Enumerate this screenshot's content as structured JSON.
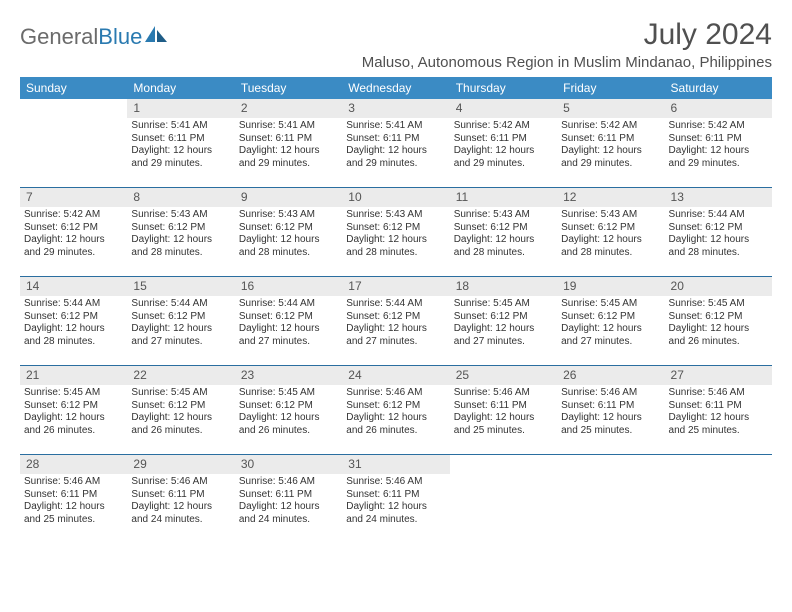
{
  "brand": {
    "part1": "General",
    "part2": "Blue"
  },
  "title": "July 2024",
  "location": "Maluso, Autonomous Region in Muslim Mindanao, Philippines",
  "colors": {
    "header_bg": "#3b8bc4",
    "header_text": "#ffffff",
    "row_divider": "#2a6ea0",
    "daynum_bg": "#ebebeb",
    "text": "#333333",
    "title_text": "#505050",
    "logo_gray": "#6b6b6b",
    "logo_blue": "#2a7ab0",
    "page_bg": "#ffffff"
  },
  "typography": {
    "title_fontsize": 30,
    "location_fontsize": 15,
    "dow_fontsize": 12,
    "daynum_fontsize": 12,
    "body_fontsize": 10
  },
  "days_of_week": [
    "Sunday",
    "Monday",
    "Tuesday",
    "Wednesday",
    "Thursday",
    "Friday",
    "Saturday"
  ],
  "weeks": [
    [
      {
        "n": "",
        "sunrise": "",
        "sunset": "",
        "daylight": ""
      },
      {
        "n": "1",
        "sunrise": "Sunrise: 5:41 AM",
        "sunset": "Sunset: 6:11 PM",
        "daylight": "Daylight: 12 hours and 29 minutes."
      },
      {
        "n": "2",
        "sunrise": "Sunrise: 5:41 AM",
        "sunset": "Sunset: 6:11 PM",
        "daylight": "Daylight: 12 hours and 29 minutes."
      },
      {
        "n": "3",
        "sunrise": "Sunrise: 5:41 AM",
        "sunset": "Sunset: 6:11 PM",
        "daylight": "Daylight: 12 hours and 29 minutes."
      },
      {
        "n": "4",
        "sunrise": "Sunrise: 5:42 AM",
        "sunset": "Sunset: 6:11 PM",
        "daylight": "Daylight: 12 hours and 29 minutes."
      },
      {
        "n": "5",
        "sunrise": "Sunrise: 5:42 AM",
        "sunset": "Sunset: 6:11 PM",
        "daylight": "Daylight: 12 hours and 29 minutes."
      },
      {
        "n": "6",
        "sunrise": "Sunrise: 5:42 AM",
        "sunset": "Sunset: 6:11 PM",
        "daylight": "Daylight: 12 hours and 29 minutes."
      }
    ],
    [
      {
        "n": "7",
        "sunrise": "Sunrise: 5:42 AM",
        "sunset": "Sunset: 6:12 PM",
        "daylight": "Daylight: 12 hours and 29 minutes."
      },
      {
        "n": "8",
        "sunrise": "Sunrise: 5:43 AM",
        "sunset": "Sunset: 6:12 PM",
        "daylight": "Daylight: 12 hours and 28 minutes."
      },
      {
        "n": "9",
        "sunrise": "Sunrise: 5:43 AM",
        "sunset": "Sunset: 6:12 PM",
        "daylight": "Daylight: 12 hours and 28 minutes."
      },
      {
        "n": "10",
        "sunrise": "Sunrise: 5:43 AM",
        "sunset": "Sunset: 6:12 PM",
        "daylight": "Daylight: 12 hours and 28 minutes."
      },
      {
        "n": "11",
        "sunrise": "Sunrise: 5:43 AM",
        "sunset": "Sunset: 6:12 PM",
        "daylight": "Daylight: 12 hours and 28 minutes."
      },
      {
        "n": "12",
        "sunrise": "Sunrise: 5:43 AM",
        "sunset": "Sunset: 6:12 PM",
        "daylight": "Daylight: 12 hours and 28 minutes."
      },
      {
        "n": "13",
        "sunrise": "Sunrise: 5:44 AM",
        "sunset": "Sunset: 6:12 PM",
        "daylight": "Daylight: 12 hours and 28 minutes."
      }
    ],
    [
      {
        "n": "14",
        "sunrise": "Sunrise: 5:44 AM",
        "sunset": "Sunset: 6:12 PM",
        "daylight": "Daylight: 12 hours and 28 minutes."
      },
      {
        "n": "15",
        "sunrise": "Sunrise: 5:44 AM",
        "sunset": "Sunset: 6:12 PM",
        "daylight": "Daylight: 12 hours and 27 minutes."
      },
      {
        "n": "16",
        "sunrise": "Sunrise: 5:44 AM",
        "sunset": "Sunset: 6:12 PM",
        "daylight": "Daylight: 12 hours and 27 minutes."
      },
      {
        "n": "17",
        "sunrise": "Sunrise: 5:44 AM",
        "sunset": "Sunset: 6:12 PM",
        "daylight": "Daylight: 12 hours and 27 minutes."
      },
      {
        "n": "18",
        "sunrise": "Sunrise: 5:45 AM",
        "sunset": "Sunset: 6:12 PM",
        "daylight": "Daylight: 12 hours and 27 minutes."
      },
      {
        "n": "19",
        "sunrise": "Sunrise: 5:45 AM",
        "sunset": "Sunset: 6:12 PM",
        "daylight": "Daylight: 12 hours and 27 minutes."
      },
      {
        "n": "20",
        "sunrise": "Sunrise: 5:45 AM",
        "sunset": "Sunset: 6:12 PM",
        "daylight": "Daylight: 12 hours and 26 minutes."
      }
    ],
    [
      {
        "n": "21",
        "sunrise": "Sunrise: 5:45 AM",
        "sunset": "Sunset: 6:12 PM",
        "daylight": "Daylight: 12 hours and 26 minutes."
      },
      {
        "n": "22",
        "sunrise": "Sunrise: 5:45 AM",
        "sunset": "Sunset: 6:12 PM",
        "daylight": "Daylight: 12 hours and 26 minutes."
      },
      {
        "n": "23",
        "sunrise": "Sunrise: 5:45 AM",
        "sunset": "Sunset: 6:12 PM",
        "daylight": "Daylight: 12 hours and 26 minutes."
      },
      {
        "n": "24",
        "sunrise": "Sunrise: 5:46 AM",
        "sunset": "Sunset: 6:12 PM",
        "daylight": "Daylight: 12 hours and 26 minutes."
      },
      {
        "n": "25",
        "sunrise": "Sunrise: 5:46 AM",
        "sunset": "Sunset: 6:11 PM",
        "daylight": "Daylight: 12 hours and 25 minutes."
      },
      {
        "n": "26",
        "sunrise": "Sunrise: 5:46 AM",
        "sunset": "Sunset: 6:11 PM",
        "daylight": "Daylight: 12 hours and 25 minutes."
      },
      {
        "n": "27",
        "sunrise": "Sunrise: 5:46 AM",
        "sunset": "Sunset: 6:11 PM",
        "daylight": "Daylight: 12 hours and 25 minutes."
      }
    ],
    [
      {
        "n": "28",
        "sunrise": "Sunrise: 5:46 AM",
        "sunset": "Sunset: 6:11 PM",
        "daylight": "Daylight: 12 hours and 25 minutes."
      },
      {
        "n": "29",
        "sunrise": "Sunrise: 5:46 AM",
        "sunset": "Sunset: 6:11 PM",
        "daylight": "Daylight: 12 hours and 24 minutes."
      },
      {
        "n": "30",
        "sunrise": "Sunrise: 5:46 AM",
        "sunset": "Sunset: 6:11 PM",
        "daylight": "Daylight: 12 hours and 24 minutes."
      },
      {
        "n": "31",
        "sunrise": "Sunrise: 5:46 AM",
        "sunset": "Sunset: 6:11 PM",
        "daylight": "Daylight: 12 hours and 24 minutes."
      },
      {
        "n": "",
        "sunrise": "",
        "sunset": "",
        "daylight": ""
      },
      {
        "n": "",
        "sunrise": "",
        "sunset": "",
        "daylight": ""
      },
      {
        "n": "",
        "sunrise": "",
        "sunset": "",
        "daylight": ""
      }
    ]
  ]
}
